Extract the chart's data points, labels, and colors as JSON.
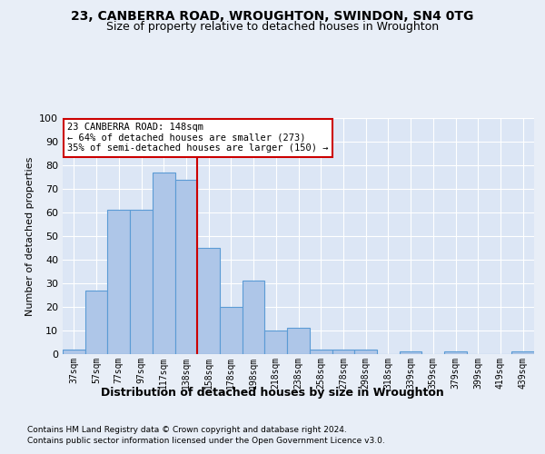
{
  "title1": "23, CANBERRA ROAD, WROUGHTON, SWINDON, SN4 0TG",
  "title2": "Size of property relative to detached houses in Wroughton",
  "xlabel": "Distribution of detached houses by size in Wroughton",
  "ylabel": "Number of detached properties",
  "bin_labels": [
    "37sqm",
    "57sqm",
    "77sqm",
    "97sqm",
    "117sqm",
    "138sqm",
    "158sqm",
    "178sqm",
    "198sqm",
    "218sqm",
    "238sqm",
    "258sqm",
    "278sqm",
    "298sqm",
    "318sqm",
    "339sqm",
    "359sqm",
    "379sqm",
    "399sqm",
    "419sqm",
    "439sqm"
  ],
  "bar_values": [
    2,
    27,
    61,
    61,
    77,
    74,
    45,
    20,
    31,
    10,
    11,
    2,
    2,
    2,
    0,
    1,
    0,
    1,
    0,
    0,
    1
  ],
  "bar_color": "#aec6e8",
  "bar_edge_color": "#5b9bd5",
  "vline_x": 5.5,
  "vline_color": "#cc0000",
  "annotation_line1": "23 CANBERRA ROAD: 148sqm",
  "annotation_line2": "← 64% of detached houses are smaller (273)",
  "annotation_line3": "35% of semi-detached houses are larger (150) →",
  "annotation_box_color": "#ffffff",
  "annotation_box_edge": "#cc0000",
  "background_color": "#e8eef7",
  "plot_bg_color": "#dce6f5",
  "footer1": "Contains HM Land Registry data © Crown copyright and database right 2024.",
  "footer2": "Contains public sector information licensed under the Open Government Licence v3.0.",
  "ylim": [
    0,
    100
  ],
  "yticks": [
    0,
    10,
    20,
    30,
    40,
    50,
    60,
    70,
    80,
    90,
    100
  ]
}
